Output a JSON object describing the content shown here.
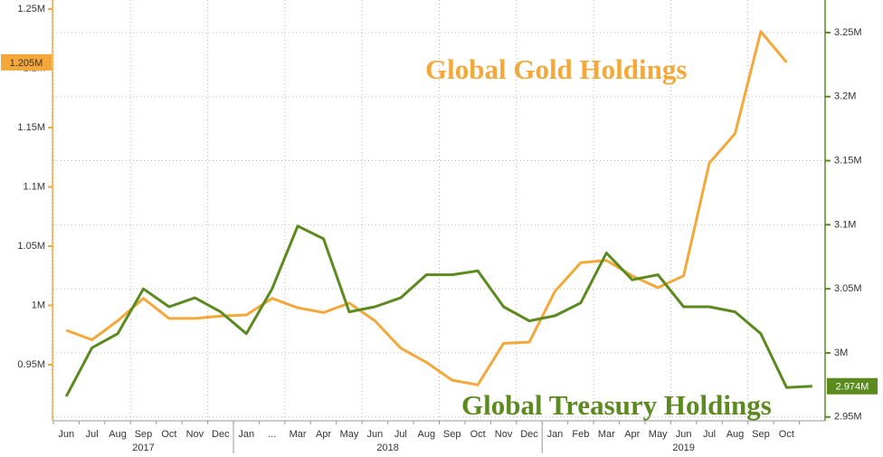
{
  "chart_data": {
    "type": "line",
    "categories": [
      "Jun",
      "Jul",
      "Aug",
      "Sep",
      "Oct",
      "Nov",
      "Dec",
      "Jan",
      "...",
      "Mar",
      "Apr",
      "May",
      "Jun",
      "Jul",
      "Aug",
      "Sep",
      "Oct",
      "Nov",
      "Dec",
      "Jan",
      "Feb",
      "Mar",
      "Apr",
      "May",
      "Jun",
      "Jul",
      "Aug",
      "Sep",
      "Oct",
      null
    ],
    "year_groups": [
      {
        "label": "2017",
        "months": 7
      },
      {
        "label": "2018",
        "months": 12
      },
      {
        "label": "2019",
        "months": 11
      }
    ],
    "series": [
      {
        "name": "Global Gold Holdings",
        "color": "#f5a83a",
        "axis": "y",
        "last_label": "1.205M",
        "values": [
          0.979,
          0.971,
          0.987,
          1.006,
          0.989,
          0.989,
          0.991,
          0.992,
          1.006,
          0.998,
          0.994,
          1.002,
          0.987,
          0.964,
          0.952,
          0.937,
          0.933,
          0.968,
          0.969,
          1.012,
          1.036,
          1.038,
          1.025,
          1.015,
          1.025,
          1.12,
          1.145,
          1.231,
          1.205,
          null
        ]
      },
      {
        "name": "Global Treasury Holdings",
        "color": "#5b8a1f",
        "axis": "y2",
        "last_label": "2.974M",
        "values": [
          2.966,
          3.004,
          3.015,
          3.05,
          3.036,
          3.043,
          3.032,
          3.015,
          3.05,
          3.099,
          3.089,
          3.032,
          3.036,
          3.043,
          3.061,
          3.061,
          3.064,
          3.036,
          3.025,
          3.029,
          3.039,
          3.078,
          3.057,
          3.061,
          3.036,
          3.036,
          3.032,
          3.015,
          2.973,
          2.974
        ]
      }
    ],
    "ylim": [
      0.9027,
      1.2576
    ],
    "yticks": [
      {
        "value": 0.95,
        "label": "0.95M"
      },
      {
        "value": 1,
        "label": "1M"
      },
      {
        "value": 1.05,
        "label": "1.05M"
      },
      {
        "value": 1.1,
        "label": "1.1M"
      },
      {
        "value": 1.15,
        "label": "1.15M"
      },
      {
        "value": 1.2,
        "label": "1.2M"
      },
      {
        "value": 1.25,
        "label": "1.25M"
      }
    ],
    "y2lim": [
      2.947,
      3.2754
    ],
    "y2ticks": [
      {
        "value": 2.95,
        "label": "2.95M"
      },
      {
        "value": 3,
        "label": "3M"
      },
      {
        "value": 3.05,
        "label": "3.05M"
      },
      {
        "value": 3.1,
        "label": "3.1M"
      },
      {
        "value": 3.15,
        "label": "3.15M"
      },
      {
        "value": 3.2,
        "label": "3.2M"
      },
      {
        "value": 3.25,
        "label": "3.25M"
      }
    ],
    "grid": true
  }
}
